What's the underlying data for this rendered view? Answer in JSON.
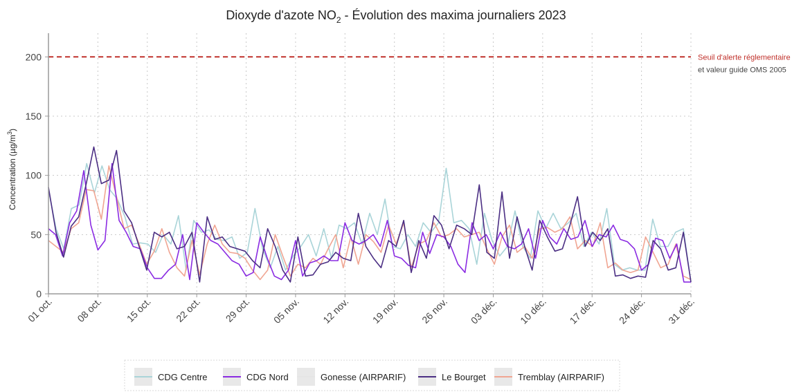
{
  "chart_data": {
    "type": "line",
    "title_main": "Dioxyde d'azote NO",
    "title_sub": "2",
    "title_rest": " - Évolution des maxima journaliers 2023",
    "ylabel": "Concentration (µg/m",
    "ylabel_sup": "3",
    "ylabel_end": ")",
    "ylim": [
      0,
      220
    ],
    "yticks": [
      0,
      50,
      100,
      150,
      200
    ],
    "grid": true,
    "x_start": "2023-10-01",
    "x_end": "2023-12-31",
    "xticks": [
      {
        "date": "2023-10-01",
        "label": "01 oct."
      },
      {
        "date": "2023-10-08",
        "label": "08 oct."
      },
      {
        "date": "2023-10-15",
        "label": "15 oct."
      },
      {
        "date": "2023-10-22",
        "label": "22 oct."
      },
      {
        "date": "2023-10-29",
        "label": "29 oct."
      },
      {
        "date": "2023-11-05",
        "label": "05 nov."
      },
      {
        "date": "2023-11-12",
        "label": "12 nov."
      },
      {
        "date": "2023-11-19",
        "label": "19 nov."
      },
      {
        "date": "2023-11-26",
        "label": "26 nov."
      },
      {
        "date": "2023-12-03",
        "label": "03 déc."
      },
      {
        "date": "2023-12-10",
        "label": "10 déc."
      },
      {
        "date": "2023-12-17",
        "label": "17 déc."
      },
      {
        "date": "2023-12-24",
        "label": "24 déc."
      },
      {
        "date": "2023-12-31",
        "label": "31 déc."
      }
    ],
    "threshold": {
      "value": 200,
      "color": "#c0302a",
      "label_line1": "Seuil d'alerte réglementaire",
      "label_line2": "et valeur guide OMS 2005"
    },
    "legend_position": "bottom",
    "series": [
      {
        "name": "CDG Centre",
        "color": "#a9d4d8",
        "values": [
          88,
          55,
          38,
          72,
          75,
          110,
          85,
          108,
          88,
          80,
          65,
          42,
          43,
          42,
          35,
          50,
          42,
          66,
          20,
          62,
          52,
          54,
          46,
          45,
          48,
          30,
          35,
          72,
          38,
          22,
          40,
          20,
          32,
          40,
          50,
          32,
          55,
          30,
          58,
          55,
          60,
          42,
          68,
          50,
          80,
          40,
          38,
          50,
          40,
          60,
          52,
          60,
          106,
          60,
          62,
          55,
          25,
          68,
          45,
          32,
          40,
          70,
          40,
          30,
          70,
          55,
          68,
          55,
          60,
          68,
          40,
          52,
          42,
          72,
          25,
          20,
          22,
          20,
          20,
          63,
          40,
          40,
          52,
          55,
          10
        ]
      },
      {
        "name": "CDG Nord",
        "color": "#8a2be2",
        "values": [
          55,
          50,
          32,
          60,
          70,
          104,
          58,
          37,
          45,
          110,
          62,
          52,
          40,
          38,
          22,
          13,
          13,
          20,
          25,
          50,
          12,
          60,
          52,
          45,
          42,
          35,
          28,
          25,
          15,
          18,
          48,
          30,
          15,
          12,
          20,
          45,
          15,
          26,
          28,
          32,
          28,
          28,
          60,
          45,
          42,
          45,
          50,
          40,
          62,
          32,
          30,
          24,
          22,
          52,
          34,
          50,
          48,
          40,
          25,
          18,
          60,
          45,
          50,
          38,
          52,
          40,
          38,
          42,
          55,
          30,
          62,
          48,
          42,
          55,
          46,
          48,
          62,
          40,
          50,
          48,
          58,
          46,
          44,
          38,
          20,
          25,
          47,
          45,
          30,
          42,
          10,
          10
        ]
      },
      {
        "name": "Gonesse (AIRPARIF)",
        "color": "#e5e5e5",
        "values": []
      },
      {
        "name": "Le Bourget",
        "color": "#4b2e83",
        "values": [
          90,
          52,
          31,
          57,
          65,
          93,
          124,
          93,
          96,
          121,
          70,
          60,
          40,
          20,
          52,
          48,
          52,
          38,
          40,
          52,
          10,
          65,
          46,
          48,
          40,
          38,
          36,
          28,
          22,
          55,
          40,
          20,
          10,
          48,
          15,
          16,
          25,
          27,
          35,
          30,
          28,
          68,
          40,
          30,
          22,
          45,
          40,
          62,
          18,
          45,
          30,
          66,
          58,
          38,
          58,
          55,
          50,
          92,
          35,
          30,
          86,
          30,
          65,
          40,
          20,
          62,
          48,
          36,
          38,
          58,
          82,
          40,
          52,
          45,
          55,
          15,
          16,
          13,
          15,
          14,
          45,
          38,
          20,
          22,
          52,
          10
        ]
      },
      {
        "name": "Tremblay (AIRPARIF)",
        "color": "#f0a592",
        "values": [
          45,
          40,
          35,
          55,
          60,
          88,
          87,
          63,
          108,
          82,
          55,
          58,
          42,
          25,
          36,
          55,
          35,
          22,
          15,
          45,
          16,
          42,
          58,
          42,
          35,
          34,
          30,
          20,
          12,
          20,
          50,
          32,
          15,
          25,
          22,
          30,
          25,
          38,
          50,
          22,
          48,
          25,
          50,
          44,
          35,
          58,
          42,
          60,
          22,
          42,
          45,
          60,
          48,
          50,
          55,
          48,
          50,
          52,
          38,
          25,
          48,
          58,
          35,
          40,
          30,
          55,
          56,
          52,
          55,
          65,
          38,
          45,
          40,
          60,
          22,
          26,
          20,
          18,
          20,
          48,
          35,
          22,
          25,
          42,
          15,
          12
        ]
      }
    ]
  }
}
